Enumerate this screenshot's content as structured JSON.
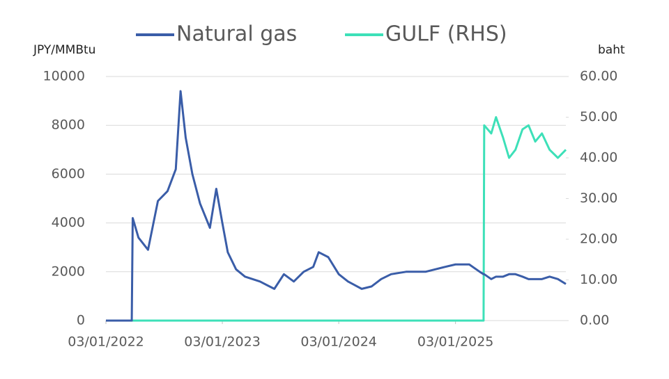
{
  "chart_data": {
    "type": "line",
    "y_label": "JPY/MMBtu",
    "y2_label": "baht",
    "x": [
      "2022-01-03",
      "2022-03-25",
      "2022-03-28",
      "2022-04-15",
      "2022-05-15",
      "2022-06-15",
      "2022-07-15",
      "2022-08-10",
      "2022-08-25",
      "2022-09-10",
      "2022-10-01",
      "2022-10-25",
      "2022-11-25",
      "2022-12-15",
      "2023-01-03",
      "2023-01-20",
      "2023-02-15",
      "2023-03-15",
      "2023-05-01",
      "2023-06-15",
      "2023-07-15",
      "2023-08-15",
      "2023-09-15",
      "2023-10-15",
      "2023-11-01",
      "2023-12-01",
      "2024-01-03",
      "2024-02-01",
      "2024-03-15",
      "2024-04-15",
      "2024-05-15",
      "2024-06-15",
      "2024-08-01",
      "2024-10-01",
      "2024-12-01",
      "2025-01-03",
      "2025-02-15",
      "2025-03-20",
      "2025-04-01",
      "2025-04-03",
      "2025-04-25",
      "2025-05-10",
      "2025-06-01",
      "2025-06-20",
      "2025-07-10",
      "2025-08-01",
      "2025-08-20",
      "2025-09-10",
      "2025-10-01",
      "2025-10-25",
      "2025-11-20",
      "2025-12-15"
    ],
    "series": [
      {
        "name": "Natural gas",
        "color": "#3a5da8",
        "axis": "y",
        "values": [
          0,
          0,
          4200,
          3400,
          2900,
          4900,
          5300,
          6200,
          9400,
          7500,
          6000,
          4800,
          3800,
          5400,
          4000,
          2800,
          2100,
          1800,
          1600,
          1300,
          1900,
          1600,
          2000,
          2200,
          2800,
          2600,
          1900,
          1600,
          1300,
          1400,
          1700,
          1900,
          2000,
          2000,
          2200,
          2300,
          2300,
          2000,
          1900,
          1900,
          1700,
          1800,
          1800,
          1900,
          1900,
          1800,
          1700,
          1700,
          1700,
          1800,
          1700,
          1500
        ]
      },
      {
        "name": "GULF (RHS)",
        "color": "#3de0b8",
        "axis": "y2",
        "values": [
          0,
          0,
          0,
          0,
          0,
          0,
          0,
          0,
          0,
          0,
          0,
          0,
          0,
          0,
          0,
          0,
          0,
          0,
          0,
          0,
          0,
          0,
          0,
          0,
          0,
          0,
          0,
          0,
          0,
          0,
          0,
          0,
          0,
          0,
          0,
          0,
          0,
          0,
          0,
          48,
          46,
          50,
          45,
          40,
          42,
          47,
          48,
          44,
          46,
          42,
          40,
          42
        ]
      }
    ],
    "xlim": [
      "2022-01-03",
      "2025-12-15"
    ],
    "xticks": [
      {
        "value": "2022-01-03",
        "label": "03/01/2022"
      },
      {
        "value": "2023-01-03",
        "label": "03/01/2023"
      },
      {
        "value": "2024-01-03",
        "label": "03/01/2024"
      },
      {
        "value": "2025-01-03",
        "label": "03/01/2025"
      }
    ],
    "ylim": [
      0,
      10000
    ],
    "yticks": [
      0,
      2000,
      4000,
      6000,
      8000,
      10000
    ],
    "y2lim": [
      0,
      60
    ],
    "y2ticks": [
      {
        "value": 0,
        "label": "0.00"
      },
      {
        "value": 10,
        "label": "10.00"
      },
      {
        "value": 20,
        "label": "20.00"
      },
      {
        "value": 30,
        "label": "30.00"
      },
      {
        "value": 40,
        "label": "40.00"
      },
      {
        "value": 50,
        "label": "50.00"
      },
      {
        "value": 60,
        "label": "60.00"
      }
    ],
    "grid": true
  }
}
